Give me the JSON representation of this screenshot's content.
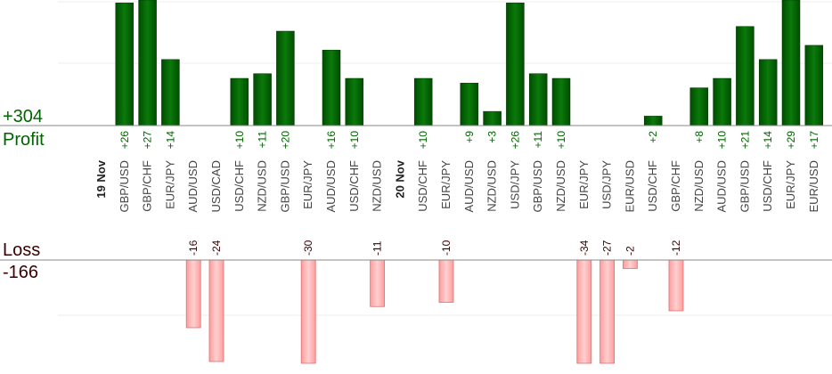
{
  "chart_data": {
    "type": "bar",
    "profit": {
      "label": "Profit",
      "total": "+304",
      "color": "#006400",
      "ylim": [
        0,
        30
      ],
      "items": [
        {
          "x": "GBP/USD",
          "value": 26,
          "label": "+26"
        },
        {
          "x": "GBP/CHF",
          "value": 27,
          "label": "+27"
        },
        {
          "x": "EUR/JPY",
          "value": 14,
          "label": "+14"
        },
        {
          "x": "USD/CHF",
          "value": 10,
          "label": "+10"
        },
        {
          "x": "NZD/USD",
          "value": 11,
          "label": "+11"
        },
        {
          "x": "GBP/USD",
          "value": 20,
          "label": "+20"
        },
        {
          "x": "AUD/USD",
          "value": 16,
          "label": "+16"
        },
        {
          "x": "USD/CHF",
          "value": 10,
          "label": "+10"
        },
        {
          "x": "USD/CHF",
          "value": 10,
          "label": "+10"
        },
        {
          "x": "AUD/USD",
          "value": 9,
          "label": "+9"
        },
        {
          "x": "NZD/USD",
          "value": 3,
          "label": "+3"
        },
        {
          "x": "USD/JPY",
          "value": 26,
          "label": "+26"
        },
        {
          "x": "GBP/USD",
          "value": 11,
          "label": "+11"
        },
        {
          "x": "NZD/USD",
          "value": 10,
          "label": "+10"
        },
        {
          "x": "USD/CHF",
          "value": 2,
          "label": "+2"
        },
        {
          "x": "NZD/USD",
          "value": 8,
          "label": "+8"
        },
        {
          "x": "AUD/USD",
          "value": 10,
          "label": "+10"
        },
        {
          "x": "GBP/USD",
          "value": 21,
          "label": "+21"
        },
        {
          "x": "USD/CHF",
          "value": 14,
          "label": "+14"
        },
        {
          "x": "EUR/JPY",
          "value": 29,
          "label": "+29"
        },
        {
          "x": "EUR/USD",
          "value": 17,
          "label": "+17"
        }
      ]
    },
    "loss": {
      "label": "Loss",
      "total": "-166",
      "color": "#ffb0b0",
      "ylim": [
        0,
        24
      ],
      "items": [
        {
          "x": "AUD/USD",
          "value": 16,
          "label": "-16"
        },
        {
          "x": "USD/CAD",
          "value": 24,
          "label": "-24"
        },
        {
          "x": "EUR/JPY",
          "value": 30,
          "label": "-30"
        },
        {
          "x": "NZD/USD",
          "value": 11,
          "label": "-11"
        },
        {
          "x": "EUR/JPY",
          "value": 10,
          "label": "-10"
        },
        {
          "x": "EUR/JPY",
          "value": 34,
          "label": "-34"
        },
        {
          "x": "USD/JPY",
          "value": 27,
          "label": "-27"
        },
        {
          "x": "EUR/USD",
          "value": 2,
          "label": "-2"
        },
        {
          "x": "GBP/CHF",
          "value": 12,
          "label": "-12"
        }
      ]
    },
    "categories": [
      {
        "date": "19 Nov"
      },
      {
        "x": "GBP/USD",
        "profit": 0
      },
      {
        "x": "GBP/CHF",
        "profit": 1
      },
      {
        "x": "EUR/JPY",
        "profit": 2
      },
      {
        "x": "AUD/USD",
        "loss": 0
      },
      {
        "x": "USD/CAD",
        "loss": 1
      },
      {
        "x": "USD/CHF",
        "profit": 3
      },
      {
        "x": "NZD/USD",
        "profit": 4
      },
      {
        "x": "GBP/USD",
        "profit": 5
      },
      {
        "x": "EUR/JPY",
        "loss": 2
      },
      {
        "x": "AUD/USD",
        "profit": 6
      },
      {
        "x": "USD/CHF",
        "profit": 7
      },
      {
        "x": "NZD/USD",
        "loss": 3
      },
      {
        "date": "20 Nov"
      },
      {
        "x": "USD/CHF",
        "profit": 8
      },
      {
        "x": "EUR/JPY",
        "loss": 4
      },
      {
        "x": "AUD/USD",
        "profit": 9
      },
      {
        "x": "NZD/USD",
        "profit": 10
      },
      {
        "x": "USD/JPY",
        "profit": 11
      },
      {
        "x": "GBP/USD",
        "profit": 12
      },
      {
        "x": "NZD/USD",
        "profit": 13
      },
      {
        "x": "EUR/JPY",
        "loss": 5
      },
      {
        "x": "USD/JPY",
        "loss": 6
      },
      {
        "x": "EUR/USD",
        "loss": 7
      },
      {
        "x": "USD/CHF",
        "profit": 14
      },
      {
        "x": "GBP/CHF",
        "loss": 8
      },
      {
        "x": "NZD/USD",
        "profit": 15
      },
      {
        "x": "AUD/USD",
        "profit": 16
      },
      {
        "x": "GBP/USD",
        "profit": 17
      },
      {
        "x": "USD/CHF",
        "profit": 18
      },
      {
        "x": "EUR/JPY",
        "profit": 19
      },
      {
        "x": "EUR/USD",
        "profit": 20
      }
    ],
    "grid": true,
    "profit_label_color": "#006400",
    "loss_label_color": "#3a0000"
  }
}
